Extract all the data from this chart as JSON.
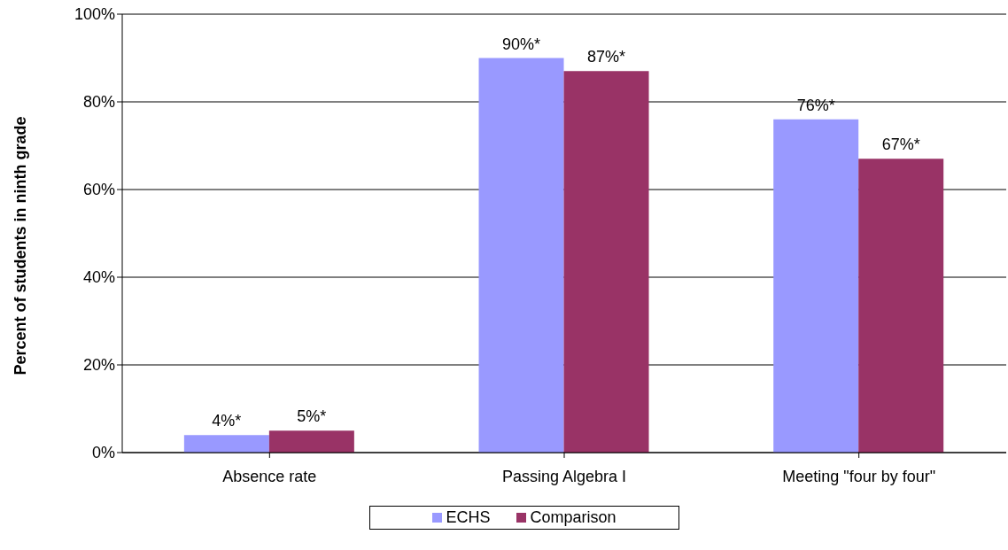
{
  "chart_data": {
    "type": "bar",
    "ylabel": "Percent of students in ninth grade",
    "categories": [
      "Absence rate",
      "Passing Algebra I",
      "Meeting \"four by four\""
    ],
    "series": [
      {
        "name": "ECHS",
        "color": "#9999ff",
        "values": [
          4,
          90,
          76
        ],
        "value_labels": [
          "4%*",
          "90%*",
          "76%*"
        ]
      },
      {
        "name": "Comparison",
        "color": "#993366",
        "values": [
          5,
          87,
          67
        ],
        "value_labels": [
          "5%*",
          "87%*",
          "67%*"
        ]
      }
    ],
    "ylim": [
      0,
      100
    ],
    "yticks": [
      {
        "value": 0,
        "label": "0%"
      },
      {
        "value": 20,
        "label": "20%"
      },
      {
        "value": 40,
        "label": "40%"
      },
      {
        "value": 60,
        "label": "60%"
      },
      {
        "value": 80,
        "label": "80%"
      },
      {
        "value": 100,
        "label": "100%"
      }
    ],
    "grid": "y",
    "legend": "bottom"
  }
}
